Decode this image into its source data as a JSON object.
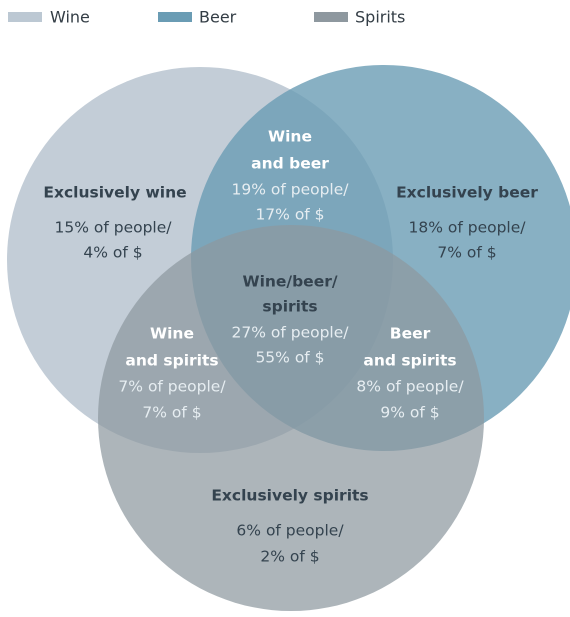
{
  "legend": [
    {
      "label": "Wine",
      "color": "#bcc8d3"
    },
    {
      "label": "Beer",
      "color": "#6a9cb4"
    },
    {
      "label": "Spirits",
      "color": "#8e989f"
    }
  ],
  "regions": [
    {
      "title": [
        "Exclusively wine"
      ],
      "lines": [
        "15% of people/",
        "4% of $"
      ]
    },
    {
      "title": [
        "Wine",
        "and beer"
      ],
      "lines": [
        "19% of people/",
        "17% of $"
      ]
    },
    {
      "title": [
        "Exclusively beer"
      ],
      "lines": [
        "18% of people/",
        "7% of $"
      ]
    },
    {
      "title": [
        "Wine/beer/",
        "spirits"
      ],
      "lines": [
        "27% of people/",
        "55% of $"
      ]
    },
    {
      "title": [
        "Wine",
        "and spirits"
      ],
      "lines": [
        "7% of people/",
        "7% of $"
      ]
    },
    {
      "title": [
        "Beer",
        "and spirits"
      ],
      "lines": [
        "8% of people/",
        "9% of $"
      ]
    },
    {
      "title": [
        "Exclusively spirits"
      ],
      "lines": [
        "6% of people/",
        "2% of $"
      ]
    }
  ]
}
